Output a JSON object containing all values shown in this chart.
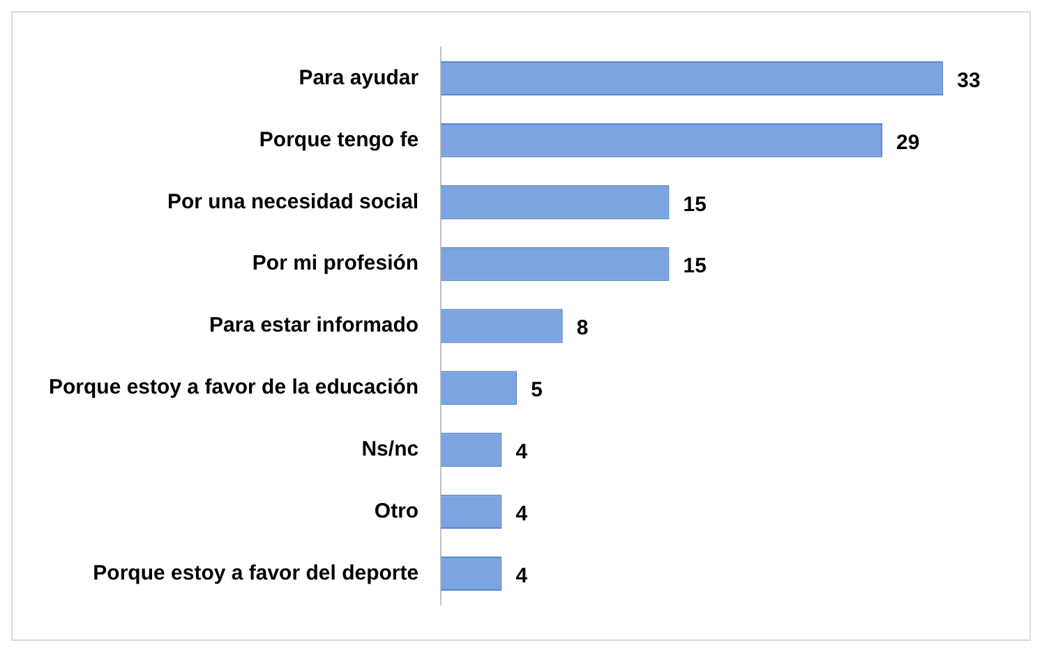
{
  "chart_data": {
    "type": "bar",
    "orientation": "horizontal",
    "categories": [
      "Para ayudar",
      "Porque tengo fe",
      "Por una necesidad social",
      "Por mi profesión",
      "Para estar informado",
      "Porque estoy a favor de la educación",
      "Ns/nc",
      "Otro",
      "Porque estoy a favor del deporte"
    ],
    "values": [
      33,
      29,
      15,
      15,
      8,
      5,
      4,
      4,
      4
    ],
    "color": "#7ba4e0",
    "data_labels": true,
    "legend": false
  }
}
